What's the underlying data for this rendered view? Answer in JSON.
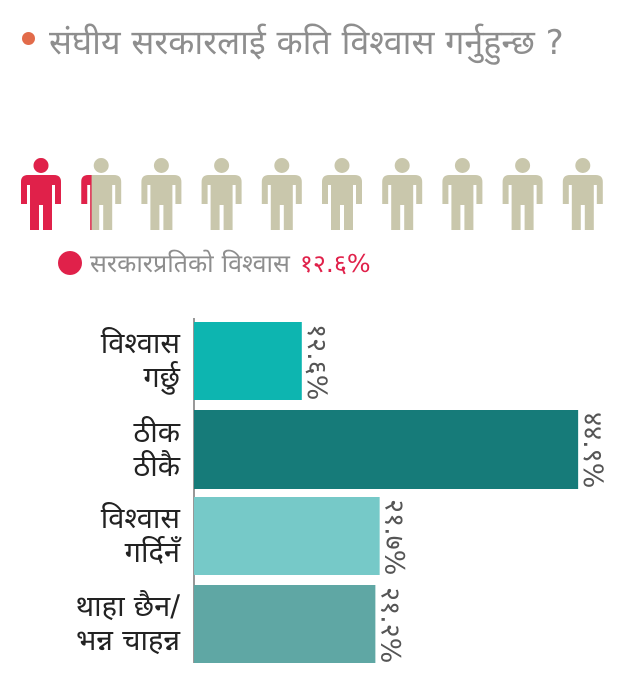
{
  "title": "संघीय सरकारलाई कति विश्वास गर्नुहुन्छ ?",
  "colors": {
    "title_dot": "#e26b4a",
    "highlight": "#e0214a",
    "person_base": "#c9c7ac",
    "bar_colors": [
      "#0db5b0",
      "#167b79",
      "#76c9c8",
      "#5fa7a4"
    ]
  },
  "icons": [
    "person-icon"
  ],
  "legend": {
    "label": "सरकारप्रतिको विश्वास",
    "value": "१२.६%"
  },
  "chart_data": [
    {
      "type": "pictograph",
      "title": "",
      "icons_total": 10,
      "percent_per_icon": 10,
      "highlight_value": 12.6,
      "legend": [
        {
          "label": "सरकारप्रतिको विश्वास",
          "value_label": "१२.६%"
        }
      ]
    },
    {
      "type": "bar",
      "orientation": "horizontal",
      "title": "",
      "categories": [
        [
          "विश्वास",
          "गर्छु"
        ],
        [
          "ठीक",
          "ठीकै"
        ],
        [
          "विश्वास",
          "गर्दिनँ"
        ],
        [
          "थाहा छैन/",
          "भन्न चाहन्न"
        ]
      ],
      "values": [
        12.6,
        44.9,
        21.7,
        21.2
      ],
      "value_labels": [
        "१२.६%",
        "४४.९%",
        "२१.७%",
        "२१.२%"
      ],
      "xlim": [
        0,
        45
      ],
      "xlabel": "",
      "ylabel": "",
      "grid": false
    }
  ]
}
